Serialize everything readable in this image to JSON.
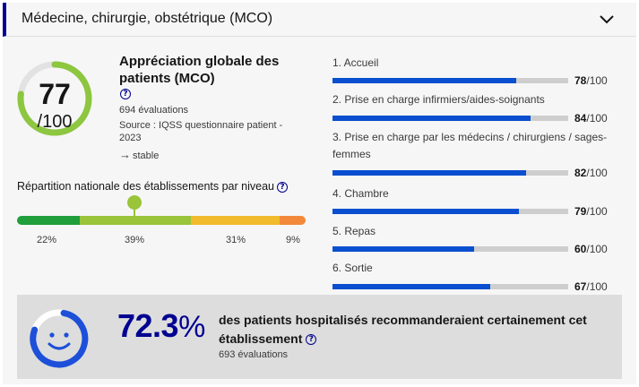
{
  "header": {
    "title": "Médecine, chirurgie, obstétrique (MCO)"
  },
  "global": {
    "score": "77",
    "denominator": "/100",
    "score_value": 77,
    "title": "Appréciation globale des patients (MCO)",
    "help_glyph": "?",
    "evaluations": "694 évaluations",
    "source": "Source : IQSS questionnaire patient - 2023",
    "trend": "stable",
    "trend_icon": "arrow-right-icon",
    "gauge_color": "#8dc63f"
  },
  "repartition": {
    "title": "Répartition nationale des établissements par niveau",
    "segments": [
      {
        "label": "22%",
        "value": 22,
        "color": "#1f9e3b"
      },
      {
        "label": "39%",
        "value": 39,
        "color": "#9ac43a"
      },
      {
        "label": "31%",
        "value": 31,
        "color": "#f1bb2d"
      },
      {
        "label": "9%",
        "value": 9,
        "color": "#f4883a"
      }
    ],
    "marker_color": "#9ac43a"
  },
  "criteria": [
    {
      "label": "1. Accueil",
      "score": "78",
      "value": 78,
      "unit": "/100"
    },
    {
      "label": "2. Prise en charge infirmiers/aides-soignants",
      "score": "84",
      "value": 84,
      "unit": "/100"
    },
    {
      "label": "3. Prise en charge par les médecins / chirurgiens / sages-femmes",
      "score": "82",
      "value": 82,
      "unit": "/100"
    },
    {
      "label": "4. Chambre",
      "score": "79",
      "value": 79,
      "unit": "/100"
    },
    {
      "label": "5. Repas",
      "score": "60",
      "value": 60,
      "unit": "/100"
    },
    {
      "label": "6. Sortie",
      "score": "67",
      "value": 67,
      "unit": "/100"
    }
  ],
  "recommendation": {
    "value": "72.3",
    "percent_sign": "%",
    "value_num": 72.3,
    "text": "des patients hospitalisés recommanderaient certainement cet établissement",
    "help_glyph": "?",
    "evaluations": "693 évaluations",
    "icon": "smiley-icon",
    "accent": "#000091"
  }
}
